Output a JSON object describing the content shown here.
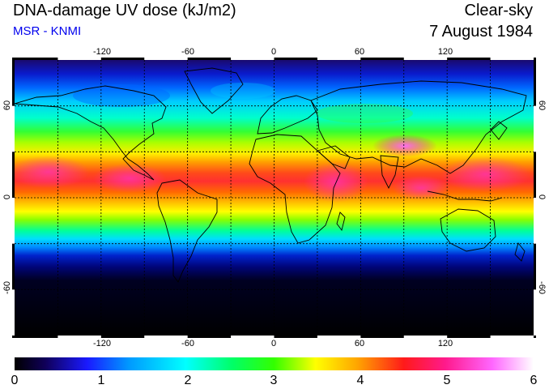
{
  "header": {
    "title": "DNA-damage UV dose (kJ/m2)",
    "source": "MSR - KNMI",
    "condition": "Clear-sky",
    "date": "7 August 1984"
  },
  "map": {
    "lon_ticks": [
      "-120",
      "-60",
      "0",
      "60",
      "120"
    ],
    "lat_ticks": [
      "60",
      "0",
      "-60"
    ]
  },
  "colorbar": {
    "labels": [
      "0",
      "1",
      "2",
      "3",
      "4",
      "5",
      "6"
    ],
    "min": 0,
    "max": 6
  }
}
